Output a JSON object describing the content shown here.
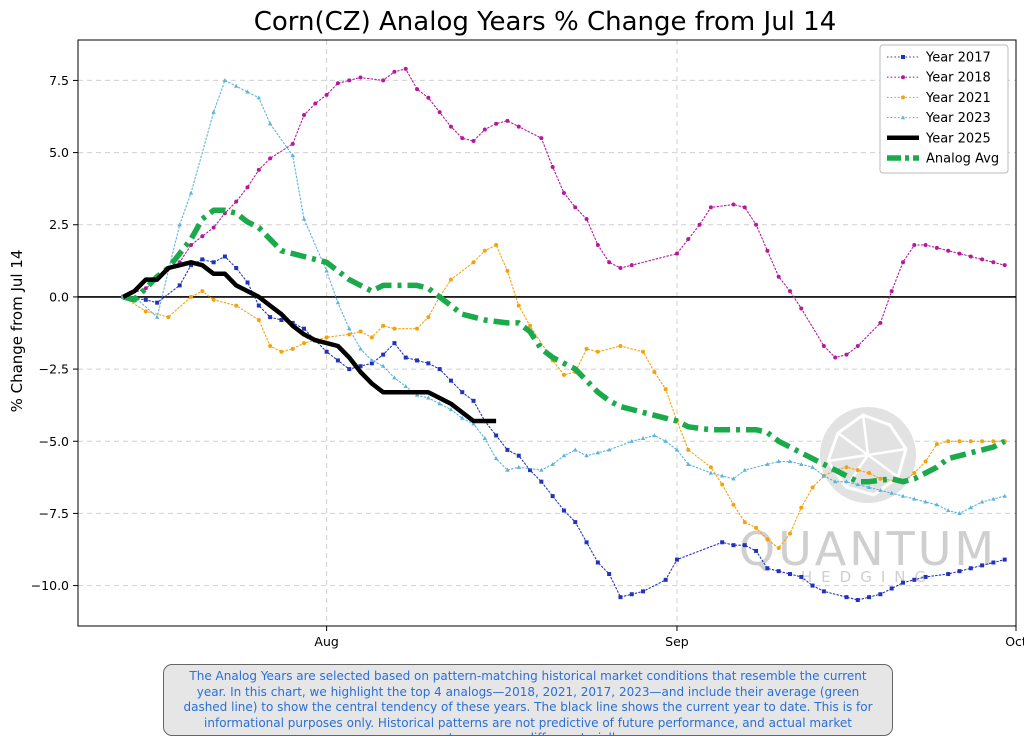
{
  "chart_data": {
    "type": "line",
    "title": "Corn(CZ) Analog Years % Change from Jul 14",
    "ylabel": "% Change from Jul 14",
    "xlabel": "",
    "x_ticks": [
      "Aug",
      "Sep",
      "Oct"
    ],
    "x_tick_dates": [
      "2025-08-01",
      "2025-09-01",
      "2025-10-01"
    ],
    "xlim": [
      "2025-07-10",
      "2025-10-01"
    ],
    "y_ticks": [
      "7.5",
      "5.0",
      "2.5",
      "0.0",
      "−2.5",
      "−5.0",
      "−7.5",
      "−10.0"
    ],
    "y_tick_values": [
      7.5,
      5.0,
      2.5,
      0.0,
      -2.5,
      -5.0,
      -7.5,
      -10.0
    ],
    "ylim": [
      -11.4,
      8.9
    ],
    "grid": true,
    "legend_position": "top-right",
    "series": [
      {
        "name": "Year 2017",
        "color": "#2233bb",
        "style": "dotted-square",
        "x": [
          "2025-07-14",
          "2025-07-16",
          "2025-07-17",
          "2025-07-19",
          "2025-07-20",
          "2025-07-21",
          "2025-07-22",
          "2025-07-23",
          "2025-07-24",
          "2025-07-25",
          "2025-07-26",
          "2025-07-27",
          "2025-07-28",
          "2025-07-29",
          "2025-07-30",
          "2025-07-31",
          "2025-08-01",
          "2025-08-02",
          "2025-08-03",
          "2025-08-04",
          "2025-08-05",
          "2025-08-06",
          "2025-08-07",
          "2025-08-08",
          "2025-08-09",
          "2025-08-10",
          "2025-08-11",
          "2025-08-12",
          "2025-08-13",
          "2025-08-14",
          "2025-08-15",
          "2025-08-16",
          "2025-08-17",
          "2025-08-18",
          "2025-08-19",
          "2025-08-20",
          "2025-08-21",
          "2025-08-22",
          "2025-08-23",
          "2025-08-24",
          "2025-08-25",
          "2025-08-26",
          "2025-08-27",
          "2025-08-28",
          "2025-08-29",
          "2025-08-31",
          "2025-09-01",
          "2025-09-05",
          "2025-09-06",
          "2025-09-07",
          "2025-09-08",
          "2025-09-09",
          "2025-09-10",
          "2025-09-11",
          "2025-09-12",
          "2025-09-13",
          "2025-09-14",
          "2025-09-16",
          "2025-09-17",
          "2025-09-18",
          "2025-09-19",
          "2025-09-20",
          "2025-09-21",
          "2025-09-22",
          "2025-09-23",
          "2025-09-25",
          "2025-09-26",
          "2025-09-27",
          "2025-09-28",
          "2025-09-29",
          "2025-09-30"
        ],
        "y": [
          0.0,
          -0.1,
          -0.2,
          0.4,
          1.1,
          1.3,
          1.2,
          1.4,
          1.0,
          0.5,
          -0.3,
          -0.7,
          -0.8,
          -0.9,
          -1.1,
          -1.5,
          -1.9,
          -2.2,
          -2.5,
          -2.4,
          -2.3,
          -2.0,
          -1.6,
          -2.1,
          -2.2,
          -2.3,
          -2.5,
          -2.9,
          -3.3,
          -3.6,
          -4.3,
          -4.8,
          -5.3,
          -5.5,
          -6.0,
          -6.4,
          -6.9,
          -7.4,
          -7.8,
          -8.5,
          -9.2,
          -9.6,
          -10.4,
          -10.3,
          -10.2,
          -9.8,
          -9.1,
          -8.5,
          -8.6,
          -8.6,
          -8.8,
          -9.4,
          -9.5,
          -9.6,
          -9.7,
          -10.0,
          -10.2,
          -10.4,
          -10.5,
          -10.4,
          -10.3,
          -10.1,
          -9.9,
          -9.8,
          -9.7,
          -9.6,
          -9.5,
          -9.4,
          -9.3,
          -9.2,
          -9.1
        ]
      },
      {
        "name": "Year 2018",
        "color": "#b5179e",
        "style": "dotted-circle",
        "x": [
          "2025-07-14",
          "2025-07-16",
          "2025-07-17",
          "2025-07-19",
          "2025-07-20",
          "2025-07-21",
          "2025-07-22",
          "2025-07-23",
          "2025-07-24",
          "2025-07-25",
          "2025-07-26",
          "2025-07-27",
          "2025-07-29",
          "2025-07-30",
          "2025-07-31",
          "2025-08-01",
          "2025-08-02",
          "2025-08-03",
          "2025-08-04",
          "2025-08-06",
          "2025-08-07",
          "2025-08-08",
          "2025-08-09",
          "2025-08-10",
          "2025-08-11",
          "2025-08-12",
          "2025-08-13",
          "2025-08-14",
          "2025-08-15",
          "2025-08-16",
          "2025-08-17",
          "2025-08-18",
          "2025-08-20",
          "2025-08-21",
          "2025-08-22",
          "2025-08-23",
          "2025-08-24",
          "2025-08-25",
          "2025-08-26",
          "2025-08-27",
          "2025-08-28",
          "2025-09-01",
          "2025-09-02",
          "2025-09-03",
          "2025-09-04",
          "2025-09-06",
          "2025-09-07",
          "2025-09-08",
          "2025-09-09",
          "2025-09-10",
          "2025-09-11",
          "2025-09-12",
          "2025-09-14",
          "2025-09-15",
          "2025-09-16",
          "2025-09-17",
          "2025-09-19",
          "2025-09-20",
          "2025-09-21",
          "2025-09-22",
          "2025-09-23",
          "2025-09-24",
          "2025-09-25",
          "2025-09-26",
          "2025-09-27",
          "2025-09-28",
          "2025-09-29",
          "2025-09-30"
        ],
        "y": [
          0.0,
          0.3,
          0.6,
          1.2,
          1.8,
          2.1,
          2.4,
          2.9,
          3.3,
          3.8,
          4.4,
          4.8,
          5.3,
          6.3,
          6.7,
          7.0,
          7.4,
          7.5,
          7.6,
          7.5,
          7.8,
          7.9,
          7.2,
          6.9,
          6.4,
          5.9,
          5.5,
          5.4,
          5.8,
          6.0,
          6.1,
          5.9,
          5.5,
          4.5,
          3.6,
          3.1,
          2.7,
          1.8,
          1.2,
          1.0,
          1.1,
          1.5,
          2.0,
          2.5,
          3.1,
          3.2,
          3.1,
          2.5,
          1.6,
          0.7,
          0.2,
          -0.4,
          -1.7,
          -2.1,
          -2.0,
          -1.7,
          -0.9,
          0.2,
          1.2,
          1.8,
          1.8,
          1.7,
          1.6,
          1.5,
          1.4,
          1.3,
          1.2,
          1.1
        ]
      },
      {
        "name": "Year 2021",
        "color": "#f5a20a",
        "style": "dotted-circle",
        "x": [
          "2025-07-14",
          "2025-07-16",
          "2025-07-18",
          "2025-07-20",
          "2025-07-21",
          "2025-07-22",
          "2025-07-24",
          "2025-07-26",
          "2025-07-27",
          "2025-07-28",
          "2025-07-29",
          "2025-07-30",
          "2025-08-01",
          "2025-08-03",
          "2025-08-04",
          "2025-08-05",
          "2025-08-06",
          "2025-08-07",
          "2025-08-09",
          "2025-08-10",
          "2025-08-11",
          "2025-08-12",
          "2025-08-14",
          "2025-08-15",
          "2025-08-16",
          "2025-08-17",
          "2025-08-18",
          "2025-08-19",
          "2025-08-21",
          "2025-08-22",
          "2025-08-23",
          "2025-08-24",
          "2025-08-25",
          "2025-08-27",
          "2025-08-29",
          "2025-08-30",
          "2025-08-31",
          "2025-09-01",
          "2025-09-02",
          "2025-09-04",
          "2025-09-05",
          "2025-09-06",
          "2025-09-07",
          "2025-09-08",
          "2025-09-09",
          "2025-09-10",
          "2025-09-11",
          "2025-09-12",
          "2025-09-13",
          "2025-09-14",
          "2025-09-15",
          "2025-09-16",
          "2025-09-17",
          "2025-09-18",
          "2025-09-19",
          "2025-09-21",
          "2025-09-22",
          "2025-09-23",
          "2025-09-24",
          "2025-09-25",
          "2025-09-26",
          "2025-09-27",
          "2025-09-28",
          "2025-09-29",
          "2025-09-30"
        ],
        "y": [
          0.0,
          -0.5,
          -0.7,
          0.0,
          0.2,
          -0.1,
          -0.3,
          -0.8,
          -1.7,
          -1.9,
          -1.8,
          -1.6,
          -1.4,
          -1.3,
          -1.2,
          -1.4,
          -1.0,
          -1.1,
          -1.1,
          -0.7,
          0.0,
          0.6,
          1.2,
          1.6,
          1.8,
          0.9,
          -0.3,
          -1.0,
          -2.2,
          -2.7,
          -2.6,
          -1.8,
          -1.9,
          -1.7,
          -1.9,
          -2.6,
          -3.2,
          -4.3,
          -5.3,
          -5.9,
          -6.5,
          -7.2,
          -7.8,
          -8.0,
          -8.4,
          -8.7,
          -8.2,
          -7.3,
          -6.6,
          -6.2,
          -6.0,
          -5.9,
          -6.0,
          -6.1,
          -6.3,
          -6.4,
          -6.1,
          -5.7,
          -5.1,
          -5.0,
          -5.0,
          -5.0,
          -5.0,
          -5.0,
          -5.0
        ]
      },
      {
        "name": "Year 2023",
        "color": "#5ab4e0",
        "style": "dotted-triangle",
        "x": [
          "2025-07-14",
          "2025-07-15",
          "2025-07-17",
          "2025-07-19",
          "2025-07-20",
          "2025-07-22",
          "2025-07-23",
          "2025-07-24",
          "2025-07-25",
          "2025-07-26",
          "2025-07-27",
          "2025-07-29",
          "2025-07-30",
          "2025-08-01",
          "2025-08-02",
          "2025-08-03",
          "2025-08-04",
          "2025-08-05",
          "2025-08-06",
          "2025-08-07",
          "2025-08-08",
          "2025-08-09",
          "2025-08-10",
          "2025-08-11",
          "2025-08-12",
          "2025-08-13",
          "2025-08-14",
          "2025-08-15",
          "2025-08-16",
          "2025-08-17",
          "2025-08-18",
          "2025-08-20",
          "2025-08-21",
          "2025-08-22",
          "2025-08-23",
          "2025-08-24",
          "2025-08-25",
          "2025-08-26",
          "2025-08-28",
          "2025-08-29",
          "2025-08-30",
          "2025-08-31",
          "2025-09-01",
          "2025-09-02",
          "2025-09-04",
          "2025-09-05",
          "2025-09-06",
          "2025-09-07",
          "2025-09-09",
          "2025-09-10",
          "2025-09-11",
          "2025-09-12",
          "2025-09-13",
          "2025-09-14",
          "2025-09-15",
          "2025-09-16",
          "2025-09-17",
          "2025-09-18",
          "2025-09-19",
          "2025-09-20",
          "2025-09-21",
          "2025-09-22",
          "2025-09-23",
          "2025-09-24",
          "2025-09-25",
          "2025-09-26",
          "2025-09-27",
          "2025-09-28",
          "2025-09-29",
          "2025-09-30"
        ],
        "y": [
          0.0,
          0.0,
          -0.7,
          2.5,
          3.6,
          6.4,
          7.5,
          7.3,
          7.1,
          6.9,
          6.0,
          4.9,
          2.7,
          0.9,
          -0.2,
          -1.1,
          -1.8,
          -2.2,
          -2.4,
          -2.8,
          -3.1,
          -3.4,
          -3.5,
          -3.7,
          -3.9,
          -4.2,
          -4.4,
          -4.9,
          -5.6,
          -6.0,
          -5.9,
          -6.0,
          -5.8,
          -5.5,
          -5.3,
          -5.5,
          -5.4,
          -5.3,
          -5.0,
          -4.9,
          -4.8,
          -5.0,
          -5.3,
          -5.8,
          -6.1,
          -6.2,
          -6.3,
          -6.0,
          -5.8,
          -5.7,
          -5.7,
          -5.8,
          -5.9,
          -6.2,
          -6.4,
          -6.4,
          -6.5,
          -6.6,
          -6.7,
          -6.8,
          -6.9,
          -7.0,
          -7.1,
          -7.2,
          -7.4,
          -7.5,
          -7.3,
          -7.1,
          -7.0,
          -6.9
        ]
      },
      {
        "name": "Year 2025",
        "color": "#000000",
        "style": "thick-solid",
        "x": [
          "2025-07-14",
          "2025-07-15",
          "2025-07-16",
          "2025-07-17",
          "2025-07-18",
          "2025-07-19",
          "2025-07-20",
          "2025-07-21",
          "2025-07-22",
          "2025-07-23",
          "2025-07-24",
          "2025-07-25",
          "2025-07-26",
          "2025-07-27",
          "2025-07-28",
          "2025-07-29",
          "2025-07-30",
          "2025-07-31",
          "2025-08-01",
          "2025-08-02",
          "2025-08-03",
          "2025-08-04",
          "2025-08-05",
          "2025-08-06",
          "2025-08-07",
          "2025-08-08",
          "2025-08-09",
          "2025-08-10",
          "2025-08-11",
          "2025-08-12",
          "2025-08-13",
          "2025-08-14",
          "2025-08-15",
          "2025-08-16"
        ],
        "y": [
          0.0,
          0.2,
          0.6,
          0.6,
          1.0,
          1.1,
          1.2,
          1.1,
          0.8,
          0.8,
          0.4,
          0.2,
          0.0,
          -0.3,
          -0.6,
          -1.0,
          -1.3,
          -1.5,
          -1.6,
          -1.7,
          -2.1,
          -2.6,
          -3.0,
          -3.3,
          -3.3,
          -3.3,
          -3.3,
          -3.3,
          -3.5,
          -3.7,
          -4.0,
          -4.3,
          -4.3,
          -4.3
        ]
      },
      {
        "name": "Analog Avg",
        "color": "#1aaa4a",
        "style": "thick-dashdot",
        "x": [
          "2025-07-14",
          "2025-07-15",
          "2025-07-16",
          "2025-07-17",
          "2025-07-18",
          "2025-07-19",
          "2025-07-20",
          "2025-07-21",
          "2025-07-22",
          "2025-07-23",
          "2025-07-24",
          "2025-07-25",
          "2025-07-26",
          "2025-07-27",
          "2025-07-28",
          "2025-07-29",
          "2025-07-30",
          "2025-07-31",
          "2025-08-01",
          "2025-08-02",
          "2025-08-03",
          "2025-08-04",
          "2025-08-05",
          "2025-08-06",
          "2025-08-07",
          "2025-08-08",
          "2025-08-09",
          "2025-08-10",
          "2025-08-11",
          "2025-08-12",
          "2025-08-13",
          "2025-08-14",
          "2025-08-15",
          "2025-08-16",
          "2025-08-17",
          "2025-08-18",
          "2025-08-19",
          "2025-08-20",
          "2025-08-21",
          "2025-08-22",
          "2025-08-23",
          "2025-08-24",
          "2025-08-25",
          "2025-08-26",
          "2025-08-27",
          "2025-08-28",
          "2025-08-29",
          "2025-08-30",
          "2025-08-31",
          "2025-09-01",
          "2025-09-02",
          "2025-09-03",
          "2025-09-04",
          "2025-09-05",
          "2025-09-06",
          "2025-09-07",
          "2025-09-08",
          "2025-09-09",
          "2025-09-10",
          "2025-09-11",
          "2025-09-12",
          "2025-09-13",
          "2025-09-14",
          "2025-09-15",
          "2025-09-16",
          "2025-09-17",
          "2025-09-18",
          "2025-09-19",
          "2025-09-20",
          "2025-09-21",
          "2025-09-22",
          "2025-09-23",
          "2025-09-24",
          "2025-09-25",
          "2025-09-26",
          "2025-09-27",
          "2025-09-28",
          "2025-09-29",
          "2025-09-30"
        ],
        "y": [
          0.0,
          -0.1,
          0.3,
          0.7,
          1.0,
          1.5,
          2.0,
          2.7,
          3.0,
          3.0,
          2.9,
          2.6,
          2.4,
          2.0,
          1.6,
          1.5,
          1.4,
          1.3,
          1.2,
          0.9,
          0.6,
          0.4,
          0.2,
          0.4,
          0.4,
          0.4,
          0.4,
          0.3,
          0.0,
          -0.3,
          -0.6,
          -0.7,
          -0.8,
          -0.85,
          -0.9,
          -0.9,
          -1.2,
          -1.8,
          -2.1,
          -2.3,
          -2.5,
          -2.9,
          -3.3,
          -3.6,
          -3.8,
          -3.9,
          -4.0,
          -4.1,
          -4.2,
          -4.3,
          -4.5,
          -4.55,
          -4.6,
          -4.6,
          -4.6,
          -4.6,
          -4.6,
          -4.7,
          -5.0,
          -5.2,
          -5.4,
          -5.6,
          -5.8,
          -6.0,
          -6.2,
          -6.4,
          -6.4,
          -6.35,
          -6.3,
          -6.4,
          -6.3,
          -6.1,
          -5.9,
          -5.6,
          -5.5,
          -5.4,
          -5.3,
          -5.2,
          -5.0
        ]
      }
    ]
  },
  "watermark": {
    "brand": "QUANTUM",
    "sub": "HEDGING"
  },
  "note": "The Analog Years are selected based on pattern-matching historical market conditions that resemble the current year. In this chart, we highlight the top 4 analogs—2018, 2021, 2017, 2023—and include their average (green dashed line) to show the central tendency of these years. The black line shows the current year to date. This is for informational purposes only. Historical patterns are not predictive of future performance, and actual market outcomes may differ materially"
}
